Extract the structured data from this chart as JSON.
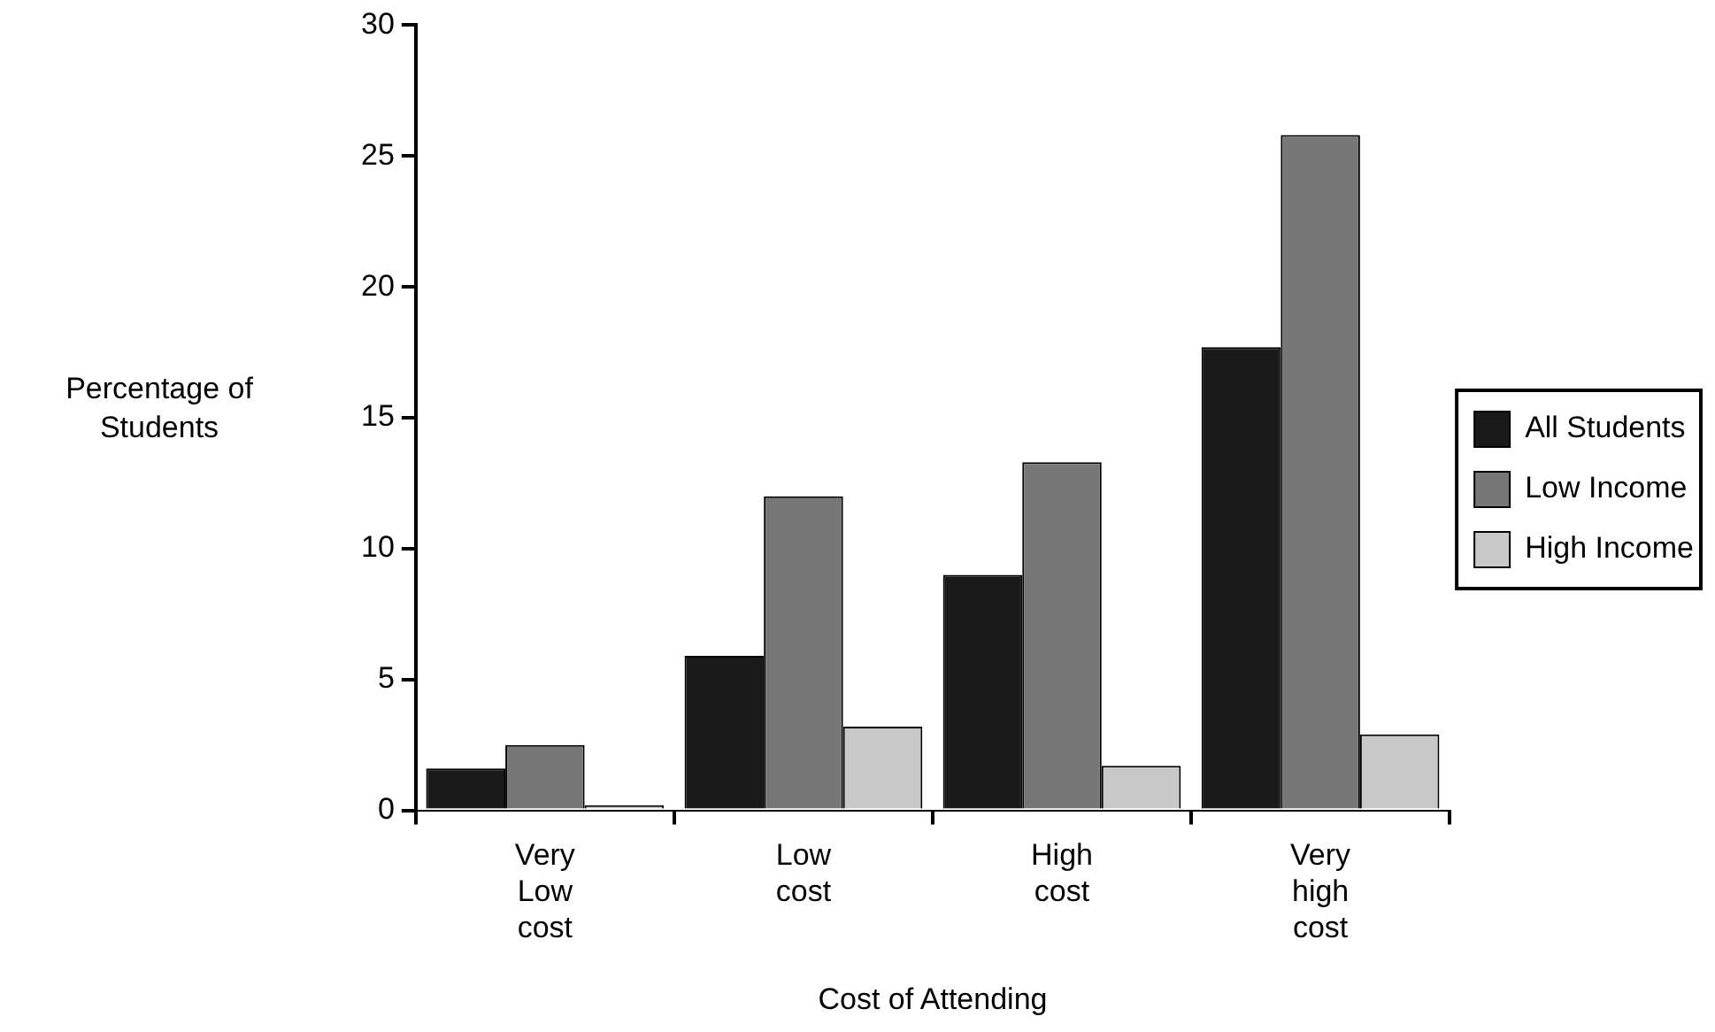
{
  "chart_data": {
    "type": "bar",
    "xlabel": "Cost of Attending",
    "ylabel": "Percentage of Students",
    "categories": [
      "Very Low cost",
      "Low cost",
      "High cost",
      "Very high cost"
    ],
    "series": [
      {
        "name": "All Students",
        "color": "#1a1a1a",
        "values": [
          1.6,
          5.9,
          9.0,
          17.7
        ]
      },
      {
        "name": "Low Income",
        "color": "#777777",
        "values": [
          2.5,
          12.0,
          13.3,
          25.8
        ]
      },
      {
        "name": "High Income",
        "color": "#c8c8c8",
        "values": [
          0.2,
          3.2,
          1.7,
          2.9
        ]
      }
    ],
    "ylim": [
      0,
      30
    ],
    "yticks": [
      0,
      5,
      10,
      15,
      20,
      25,
      30
    ],
    "grid": false,
    "legend": "right"
  }
}
